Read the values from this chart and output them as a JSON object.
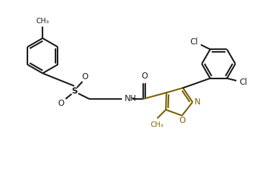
{
  "bg_color": "#ffffff",
  "line_color": "#1a1a1a",
  "ring_color": "#1a1a1a",
  "iso_color": "#7B6000",
  "bond_lw": 1.6,
  "figsize": [
    3.97,
    2.74
  ],
  "dpi": 100,
  "xlim": [
    0,
    10
  ],
  "ylim": [
    0,
    6.9
  ]
}
